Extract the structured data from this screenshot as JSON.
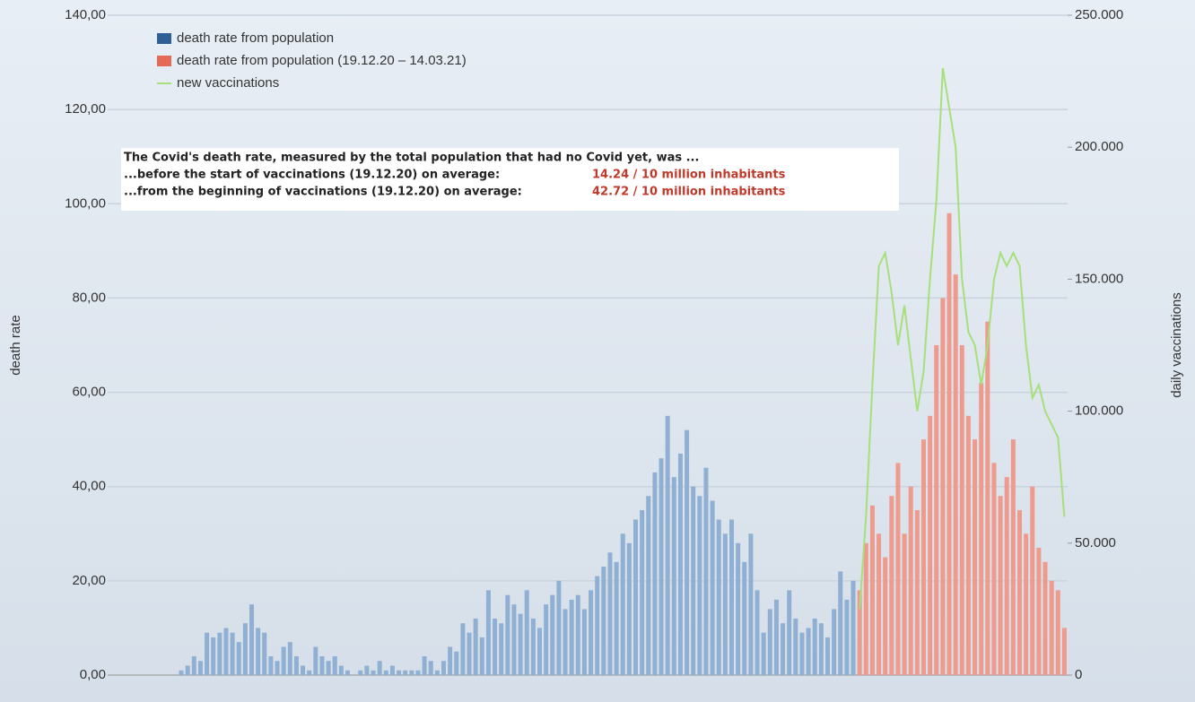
{
  "chart_data": {
    "type": "bar",
    "y_label": "death rate",
    "y2_label": "daily vaccinations",
    "ylim": [
      0,
      140
    ],
    "yticks": [
      {
        "value": 0,
        "label": "0,00"
      },
      {
        "value": 20,
        "label": "20,00"
      },
      {
        "value": 40,
        "label": "40,00"
      },
      {
        "value": 60,
        "label": "60,00"
      },
      {
        "value": 80,
        "label": "80,00"
      },
      {
        "value": 100,
        "label": "100,00"
      },
      {
        "value": 120,
        "label": "120,00"
      },
      {
        "value": 140,
        "label": "140,00"
      }
    ],
    "y2lim": [
      0,
      250000
    ],
    "y2ticks": [
      0,
      {
        "value": 50000,
        "label": "50.000"
      },
      {
        "value": 100000,
        "label": "100.000"
      },
      {
        "value": 150000,
        "label": "150.000"
      },
      {
        "value": 200000,
        "label": "200.000"
      },
      {
        "value": 250000,
        "label": "250.000"
      }
    ],
    "grid": true,
    "legend": "upper left",
    "annotation": {
      "line1": "The Covid's death rate, measured by the total population that had no Covid yet, was ...",
      "line2": "...before the start of vaccinations (19.12.20) on average:",
      "line2_value": "14.24 / 10 million inhabitants",
      "line3": "...from the beginning of vaccinations (19.12.20) on average:",
      "line3_value": "42.72 / 10 million inhabitants"
    },
    "series": [
      {
        "name": "death rate from population",
        "type": "bar",
        "color": "#8fb0d2",
        "values": [
          0,
          0,
          0,
          0,
          0,
          0,
          0,
          0,
          0,
          0,
          0,
          1,
          2,
          4,
          3,
          9,
          8,
          9,
          10,
          9,
          7,
          11,
          15,
          10,
          9,
          4,
          3,
          6,
          7,
          4,
          2,
          1,
          6,
          4,
          3,
          4,
          2,
          1,
          0,
          1,
          2,
          1,
          3,
          1,
          2,
          1,
          1,
          1,
          1,
          4,
          3,
          1,
          3,
          6,
          5,
          11,
          9,
          12,
          8,
          18,
          12,
          11,
          17,
          15,
          13,
          18,
          12,
          10,
          15,
          17,
          20,
          14,
          16,
          17,
          14,
          18,
          21,
          23,
          26,
          24,
          30,
          28,
          33,
          35,
          38,
          43,
          46,
          55,
          42,
          47,
          52,
          40,
          38,
          44,
          37,
          33,
          30,
          33,
          28,
          24,
          30,
          18,
          9,
          14,
          16,
          11,
          18,
          12,
          9,
          10,
          12,
          11,
          8,
          14,
          22,
          16,
          20,
          null,
          null,
          null,
          null,
          null,
          null,
          null,
          null,
          null,
          null,
          null,
          null,
          null,
          null,
          null,
          null,
          null,
          null,
          null,
          null,
          null,
          null,
          null,
          null,
          null,
          null,
          null,
          null,
          null,
          null,
          null,
          null,
          null
        ]
      },
      {
        "name": "death rate from population (19.12.20 – 14.03.21)",
        "type": "bar",
        "color": "#ee9a8c",
        "values": [
          null,
          null,
          null,
          null,
          null,
          null,
          null,
          null,
          null,
          null,
          null,
          null,
          null,
          null,
          null,
          null,
          null,
          null,
          null,
          null,
          null,
          null,
          null,
          null,
          null,
          null,
          null,
          null,
          null,
          null,
          null,
          null,
          null,
          null,
          null,
          null,
          null,
          null,
          null,
          null,
          null,
          null,
          null,
          null,
          null,
          null,
          null,
          null,
          null,
          null,
          null,
          null,
          null,
          null,
          null,
          null,
          null,
          null,
          null,
          null,
          null,
          null,
          null,
          null,
          null,
          null,
          null,
          null,
          null,
          null,
          null,
          null,
          null,
          null,
          null,
          null,
          null,
          null,
          null,
          null,
          null,
          null,
          null,
          null,
          null,
          null,
          null,
          null,
          null,
          null,
          null,
          null,
          null,
          null,
          null,
          null,
          null,
          null,
          null,
          null,
          null,
          null,
          null,
          null,
          null,
          null,
          null,
          null,
          null,
          null,
          null,
          null,
          null,
          null,
          null,
          null,
          null,
          18,
          28,
          36,
          30,
          25,
          38,
          45,
          30,
          40,
          35,
          50,
          55,
          70,
          80,
          98,
          85,
          70,
          55,
          50,
          62,
          75,
          45,
          38,
          42,
          50,
          35,
          30,
          40,
          27,
          24,
          20,
          18,
          10
        ]
      },
      {
        "name": "new vaccinations",
        "type": "line",
        "axis": "y2",
        "color": "#a6e07a",
        "values": [
          null,
          null,
          null,
          null,
          null,
          null,
          null,
          null,
          null,
          null,
          null,
          null,
          null,
          null,
          null,
          null,
          null,
          null,
          null,
          null,
          null,
          null,
          null,
          null,
          null,
          null,
          null,
          null,
          null,
          null,
          null,
          null,
          null,
          null,
          null,
          null,
          null,
          null,
          null,
          null,
          null,
          null,
          null,
          null,
          null,
          null,
          null,
          null,
          null,
          null,
          null,
          null,
          null,
          null,
          null,
          null,
          null,
          null,
          null,
          null,
          null,
          null,
          null,
          null,
          null,
          null,
          null,
          null,
          null,
          null,
          null,
          null,
          null,
          null,
          null,
          null,
          null,
          null,
          null,
          null,
          null,
          null,
          null,
          null,
          null,
          null,
          null,
          null,
          null,
          null,
          null,
          null,
          null,
          null,
          null,
          null,
          null,
          null,
          null,
          null,
          null,
          null,
          null,
          null,
          null,
          null,
          null,
          null,
          null,
          null,
          null,
          null,
          null,
          null,
          null,
          null,
          null,
          25000,
          60000,
          110000,
          155000,
          160000,
          145000,
          125000,
          140000,
          120000,
          100000,
          115000,
          150000,
          180000,
          230000,
          215000,
          200000,
          150000,
          130000,
          125000,
          110000,
          125000,
          150000,
          160000,
          155000,
          160000,
          155000,
          125000,
          105000,
          110000,
          100000,
          95000,
          90000,
          60000
        ]
      }
    ]
  }
}
